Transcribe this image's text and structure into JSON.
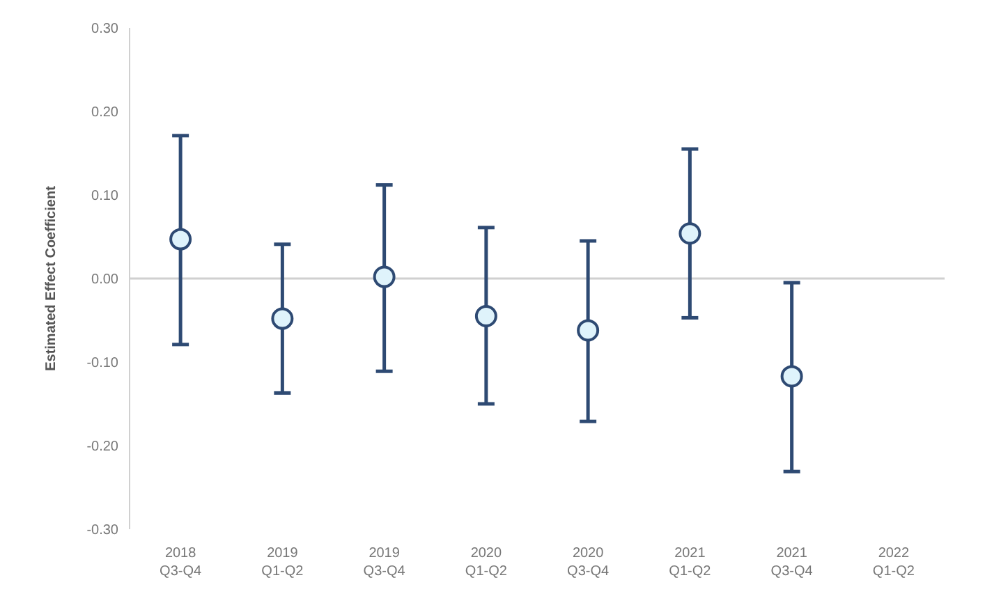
{
  "chart_data": {
    "type": "scatter",
    "ylabel": "Estimated Effect Coefficient",
    "categories": [
      "2018 Q3-Q4",
      "2019 Q1-Q2",
      "2019 Q3-Q4",
      "2020 Q1-Q2",
      "2020 Q3-Q4",
      "2021 Q1-Q2",
      "2021 Q3-Q4",
      "2022 Q1-Q2"
    ],
    "series": [
      {
        "color": "#2e4a73",
        "values": [
          0.047,
          -0.048,
          0.002,
          -0.045,
          -0.062,
          0.054,
          -0.117,
          null
        ],
        "errors": [
          [
            -0.079,
            0.171
          ],
          [
            -0.137,
            0.041
          ],
          [
            -0.111,
            0.112
          ],
          [
            -0.15,
            0.061
          ],
          [
            -0.171,
            0.045
          ],
          [
            -0.047,
            0.155
          ],
          [
            -0.231,
            -0.005
          ],
          null
        ]
      }
    ],
    "ylim": [
      -0.3,
      0.3
    ],
    "yticks": [
      {
        "value": -0.3,
        "label": "-0.30"
      },
      {
        "value": -0.2,
        "label": "-0.20"
      },
      {
        "value": -0.1,
        "label": "-0.10"
      },
      {
        "value": 0,
        "label": "0.00"
      },
      {
        "value": 0.1,
        "label": "0.10"
      },
      {
        "value": 0.2,
        "label": "0.20"
      },
      {
        "value": 0.3,
        "label": "0.30"
      }
    ],
    "ref_lines": [
      {
        "axis": "y",
        "value": 0,
        "color": "#d0d0d0"
      }
    ],
    "marker": "circle",
    "grid": false,
    "legend": false
  }
}
